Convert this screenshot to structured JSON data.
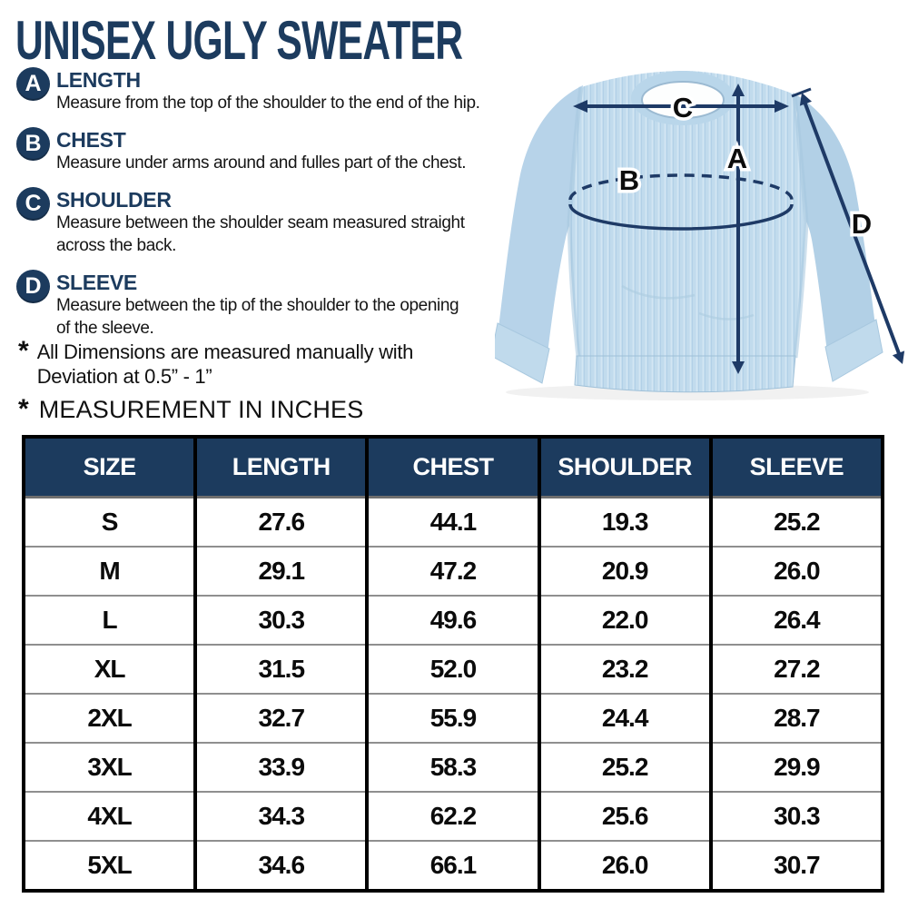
{
  "title": "UNISEX UGLY SWEATER",
  "legend": [
    {
      "letter": "A",
      "heading": "LENGTH",
      "description": "Measure from the top of the shoulder to the end of the hip."
    },
    {
      "letter": "B",
      "heading": "CHEST",
      "description": "Measure under arms around and fulles part of the chest."
    },
    {
      "letter": "C",
      "heading": "SHOULDER",
      "description": "Measure between the shoulder seam measured straight\nacross the back."
    },
    {
      "letter": "D",
      "heading": "SLEEVE",
      "description": "Measure between the tip of the shoulder to the opening\nof the sleeve."
    }
  ],
  "notes": {
    "asterisk": "*",
    "deviation": "All Dimensions are measured manually with\nDeviation at 0.5” - 1”",
    "measurement_heading": "MEASUREMENT IN INCHES"
  },
  "diagram": {
    "labels": {
      "length": "A",
      "chest": "B",
      "shoulder": "C",
      "sleeve": "D"
    },
    "colors": {
      "sweater": "#c1dbed",
      "sweater_shade": "#b2d0e6",
      "arrow": "#1e3a66",
      "label": "#0c0c0c"
    }
  },
  "chart_data": {
    "type": "table",
    "title": "MEASUREMENT IN INCHES",
    "columns": [
      "SIZE",
      "LENGTH",
      "CHEST",
      "SHOULDER",
      "SLEEVE"
    ],
    "rows": [
      [
        "S",
        "27.6",
        "44.1",
        "19.3",
        "25.2"
      ],
      [
        "M",
        "29.1",
        "47.2",
        "20.9",
        "26.0"
      ],
      [
        "L",
        "30.3",
        "49.6",
        "22.0",
        "26.4"
      ],
      [
        "XL",
        "31.5",
        "52.0",
        "23.2",
        "27.2"
      ],
      [
        "2XL",
        "32.7",
        "55.9",
        "24.4",
        "28.7"
      ],
      [
        "3XL",
        "33.9",
        "58.3",
        "25.2",
        "29.9"
      ],
      [
        "4XL",
        "34.3",
        "62.2",
        "25.6",
        "30.3"
      ],
      [
        "5XL",
        "34.6",
        "66.1",
        "26.0",
        "30.7"
      ]
    ]
  },
  "theme": {
    "navy": "#1c3b5e",
    "text": "#111111",
    "row_divider": "#8f8f8f",
    "table_border": "#000000"
  }
}
